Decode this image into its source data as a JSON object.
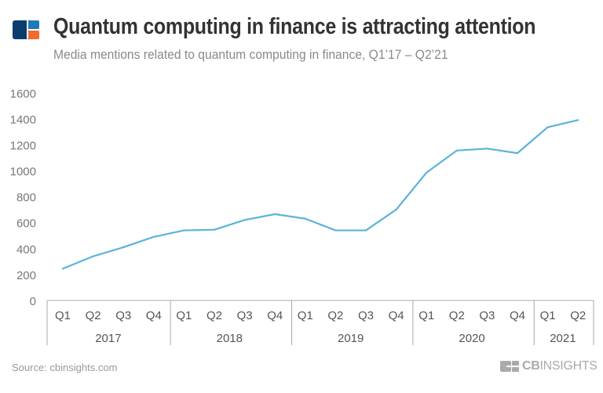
{
  "header": {
    "title": "Quantum computing in finance is attracting attention",
    "subtitle": "Media mentions related to quantum computing in finance, Q1’17 – Q2’21"
  },
  "footer": {
    "source": "Source: cbinsights.com",
    "brand_prefix": "CB",
    "brand_suffix": "INSIGHTS"
  },
  "colors": {
    "line": "#5bb4d8",
    "logo_navy": "#0d3c6e",
    "logo_blue": "#1f7ab8",
    "logo_orange": "#f26b2f",
    "text": "#333333"
  },
  "chart_data": {
    "type": "line",
    "title": "",
    "xlabel": "",
    "ylabel": "",
    "ylim": [
      0,
      1600
    ],
    "yticks": [
      "0",
      "200",
      "400",
      "600",
      "800",
      "1000",
      "1200",
      "1400",
      "1600"
    ],
    "grid": false,
    "categories": [
      "Q1",
      "Q2",
      "Q3",
      "Q4",
      "Q1",
      "Q2",
      "Q3",
      "Q4",
      "Q1",
      "Q2",
      "Q3",
      "Q4",
      "Q1",
      "Q2",
      "Q3",
      "Q4",
      "Q1",
      "Q2"
    ],
    "year_groups": [
      {
        "label": "2017",
        "count": 4
      },
      {
        "label": "2018",
        "count": 4
      },
      {
        "label": "2019",
        "count": 4
      },
      {
        "label": "2020",
        "count": 4
      },
      {
        "label": "2021",
        "count": 2
      }
    ],
    "values": [
      245,
      340,
      410,
      490,
      540,
      545,
      620,
      665,
      630,
      540,
      540,
      700,
      985,
      1155,
      1170,
      1135,
      1335,
      1390
    ]
  }
}
